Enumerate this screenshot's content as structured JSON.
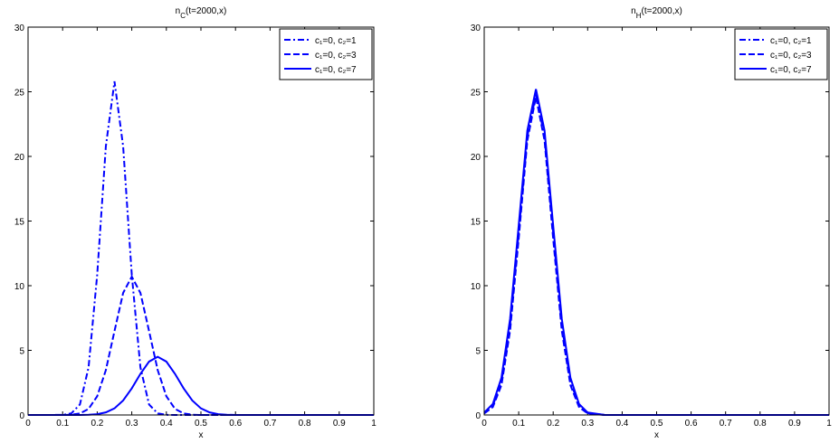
{
  "chart_data": [
    {
      "type": "line",
      "title": [
        "n",
        "C",
        "(t=2000,x)"
      ],
      "x_label": "x",
      "x": [
        0,
        0.05,
        0.1,
        0.125,
        0.15,
        0.175,
        0.2,
        0.225,
        0.25,
        0.275,
        0.3,
        0.325,
        0.35,
        0.375,
        0.4,
        0.425,
        0.45,
        0.475,
        0.5,
        0.525,
        0.55,
        0.575,
        0.6,
        0.7,
        0.8,
        0.9,
        1
      ],
      "series": [
        {
          "name": "c₁=0, c₂=1",
          "color": "#0000ff",
          "dash": "dashdot",
          "values": [
            0,
            0,
            0.01,
            0.12,
            0.81,
            3.68,
            10.85,
            20.78,
            25.8,
            20.78,
            10.85,
            3.68,
            0.81,
            0.12,
            0.01,
            0,
            0,
            0,
            0,
            0,
            0,
            0,
            0,
            0,
            0,
            0,
            0
          ]
        },
        {
          "name": "c₁=0, c₂=3",
          "color": "#0000ff",
          "dash": "dashed",
          "values": [
            0,
            0,
            0,
            0.02,
            0.12,
            0.47,
            1.45,
            3.47,
            6.49,
            9.44,
            10.7,
            9.44,
            6.49,
            3.47,
            1.45,
            0.47,
            0.12,
            0.02,
            0,
            0,
            0,
            0,
            0,
            0,
            0,
            0,
            0
          ]
        },
        {
          "name": "c₁=0, c₂=7",
          "color": "#0000ff",
          "dash": "solid",
          "values": [
            0,
            0,
            0,
            0,
            0,
            0.02,
            0.06,
            0.2,
            0.51,
            1.12,
            2.06,
            3.18,
            4.13,
            4.5,
            4.13,
            3.18,
            2.06,
            1.12,
            0.51,
            0.2,
            0.06,
            0.02,
            0,
            0,
            0,
            0,
            0
          ]
        }
      ],
      "xlim": [
        0,
        1
      ],
      "xticks": [
        0,
        0.1,
        0.2,
        0.3,
        0.4,
        0.5,
        0.6,
        0.7,
        0.8,
        0.9,
        1
      ],
      "ylim": [
        0,
        30
      ],
      "yticks": [
        0,
        5,
        10,
        15,
        20,
        25,
        30
      ],
      "legend": "top-right"
    },
    {
      "type": "line",
      "title": [
        "n",
        "H",
        "(t=2000,x)"
      ],
      "x_label": "x",
      "x": [
        0,
        0.025,
        0.05,
        0.075,
        0.1,
        0.125,
        0.15,
        0.175,
        0.2,
        0.225,
        0.25,
        0.275,
        0.3,
        0.35,
        0.4,
        0.5,
        0.6,
        0.7,
        0.8,
        0.9,
        1
      ],
      "series": [
        {
          "name": "c₁=0, c₂=1",
          "color": "#0000ff",
          "dash": "dashdot",
          "values": [
            0.15,
            0.72,
            2.58,
            6.94,
            14.08,
            21.53,
            24.8,
            21.53,
            14.08,
            6.94,
            2.58,
            0.72,
            0.15,
            0,
            0,
            0,
            0,
            0,
            0,
            0,
            0
          ]
        },
        {
          "name": "c₁=0, c₂=3",
          "color": "#0000ff",
          "dash": "dashed",
          "values": [
            0.12,
            0.61,
            2.31,
            6.51,
            13.63,
            21.22,
            24.6,
            21.22,
            13.63,
            6.51,
            2.31,
            0.61,
            0.12,
            0,
            0,
            0,
            0,
            0,
            0,
            0,
            0
          ]
        },
        {
          "name": "c₁=0, c₂=7",
          "color": "#0000ff",
          "dash": "solid",
          "values": [
            0.19,
            0.85,
            2.88,
            7.43,
            14.65,
            22.0,
            25.2,
            22.0,
            14.65,
            7.43,
            2.88,
            0.85,
            0.19,
            0,
            0,
            0,
            0,
            0,
            0,
            0,
            0
          ]
        }
      ],
      "xlim": [
        0,
        1
      ],
      "xticks": [
        0,
        0.1,
        0.2,
        0.3,
        0.4,
        0.5,
        0.6,
        0.7,
        0.8,
        0.9,
        1
      ],
      "ylim": [
        0,
        30
      ],
      "yticks": [
        0,
        5,
        10,
        15,
        20,
        25,
        30
      ],
      "legend": "top-right"
    }
  ]
}
